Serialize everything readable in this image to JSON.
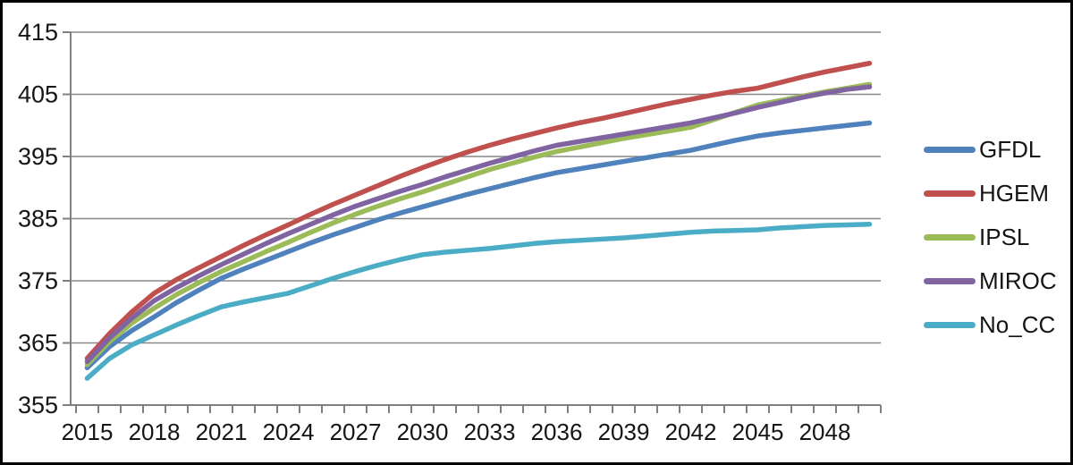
{
  "chart_data": {
    "type": "line",
    "title": "",
    "xlabel": "",
    "ylabel": "",
    "grid": "horizontal",
    "legend_position": "right",
    "ylim": [
      355,
      415
    ],
    "y_tick_labels": [
      "355",
      "365",
      "375",
      "385",
      "395",
      "405",
      "415"
    ],
    "x_tick_labels": [
      "2015",
      "2018",
      "2021",
      "2024",
      "2027",
      "2030",
      "2033",
      "2036",
      "2039",
      "2042",
      "2045",
      "2048"
    ],
    "x": [
      2015,
      2016,
      2017,
      2018,
      2019,
      2020,
      2021,
      2022,
      2023,
      2024,
      2025,
      2026,
      2027,
      2028,
      2029,
      2030,
      2031,
      2032,
      2033,
      2034,
      2035,
      2036,
      2037,
      2038,
      2039,
      2040,
      2041,
      2042,
      2043,
      2044,
      2045,
      2046,
      2047,
      2048,
      2049,
      2050
    ],
    "series": [
      {
        "name": "GFDL",
        "color": "#4F81BD",
        "values": [
          361.0,
          364.4,
          367.0,
          369.2,
          371.5,
          373.5,
          375.4,
          376.9,
          378.3,
          379.7,
          381.1,
          382.4,
          383.6,
          384.8,
          385.9,
          386.9,
          387.9,
          388.9,
          389.8,
          390.7,
          391.6,
          392.4,
          393.0,
          393.6,
          394.2,
          394.8,
          395.4,
          396.0,
          396.8,
          397.6,
          398.3,
          398.8,
          399.2,
          399.6,
          400.0,
          400.4
        ]
      },
      {
        "name": "HGEM",
        "color": "#C0504D",
        "values": [
          362.5,
          366.5,
          370.0,
          373.0,
          375.2,
          377.1,
          378.9,
          380.7,
          382.4,
          384.0,
          385.7,
          387.3,
          388.8,
          390.3,
          391.8,
          393.2,
          394.5,
          395.7,
          396.8,
          397.8,
          398.7,
          399.6,
          400.4,
          401.1,
          401.9,
          402.7,
          403.5,
          404.2,
          404.9,
          405.5,
          406.0,
          406.9,
          407.8,
          408.6,
          409.3,
          410.0
        ]
      },
      {
        "name": "IPSL",
        "color": "#9BBB59",
        "values": [
          361.5,
          365.2,
          368.2,
          370.6,
          372.8,
          374.7,
          376.5,
          378.1,
          379.7,
          381.2,
          382.8,
          384.3,
          385.7,
          387.0,
          388.2,
          389.3,
          390.5,
          391.7,
          392.9,
          393.9,
          394.9,
          395.8,
          396.5,
          397.2,
          397.9,
          398.5,
          399.1,
          399.7,
          400.9,
          402.1,
          403.3,
          404.0,
          404.7,
          405.4,
          406.0,
          406.6
        ]
      },
      {
        "name": "MIROC",
        "color": "#8064A2",
        "values": [
          362.0,
          365.8,
          369.0,
          371.8,
          373.9,
          375.8,
          377.6,
          379.3,
          381.0,
          382.6,
          384.1,
          385.6,
          387.0,
          388.2,
          389.4,
          390.5,
          391.7,
          392.8,
          393.9,
          394.9,
          395.9,
          396.8,
          397.4,
          398.0,
          398.6,
          399.2,
          399.8,
          400.4,
          401.2,
          402.0,
          402.9,
          403.7,
          404.5,
          405.2,
          405.8,
          406.2
        ]
      },
      {
        "name": "No_CC",
        "color": "#4BACC6",
        "values": [
          359.3,
          362.5,
          364.7,
          366.3,
          367.9,
          369.4,
          370.8,
          371.6,
          372.3,
          373.0,
          374.2,
          375.4,
          376.5,
          377.5,
          378.4,
          379.2,
          379.6,
          379.9,
          380.2,
          380.6,
          381.0,
          381.3,
          381.5,
          381.7,
          381.9,
          382.2,
          382.5,
          382.8,
          383.0,
          383.1,
          383.2,
          383.5,
          383.7,
          383.9,
          384.0,
          384.1
        ]
      }
    ]
  },
  "colors": {
    "background": "#FFFFFF",
    "frame_border": "#000000",
    "gridline": "#878787",
    "axis": "#808080",
    "tick_text": "#151515"
  }
}
